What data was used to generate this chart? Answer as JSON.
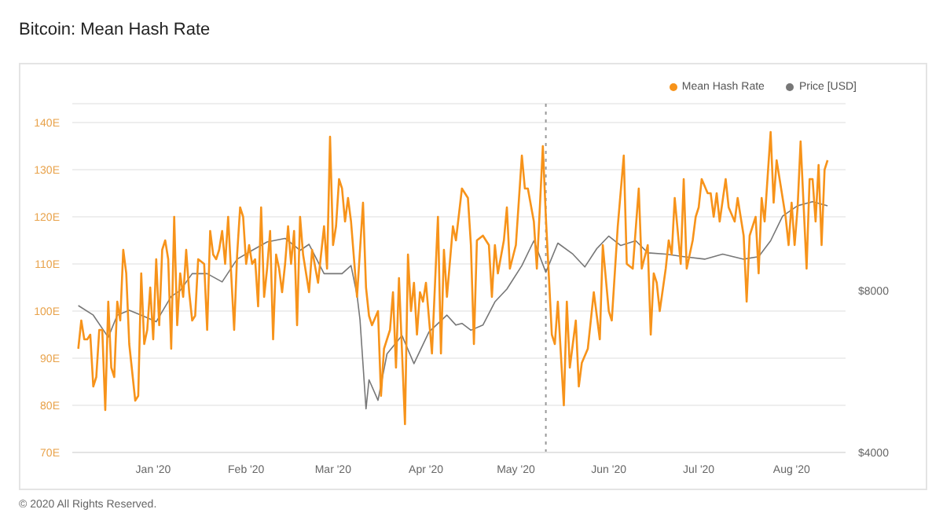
{
  "chart_data": {
    "type": "line",
    "title": "Bitcoin: Mean Hash Rate",
    "xlim": [
      "2019-12-05",
      "2020-08-19"
    ],
    "xticks": [
      {
        "value": "2020-01-01",
        "label": "Jan '20"
      },
      {
        "value": "2020-02-01",
        "label": "Feb '20"
      },
      {
        "value": "2020-03-01",
        "label": "Mar '20"
      },
      {
        "value": "2020-04-01",
        "label": "Apr '20"
      },
      {
        "value": "2020-05-01",
        "label": "May '20"
      },
      {
        "value": "2020-06-01",
        "label": "Jun '20"
      },
      {
        "value": "2020-07-01",
        "label": "Jul '20"
      },
      {
        "value": "2020-08-01",
        "label": "Aug '20"
      }
    ],
    "ylim": [
      70,
      144
    ],
    "yticks": [
      {
        "value": 70,
        "label": "70E"
      },
      {
        "value": 80,
        "label": "80E"
      },
      {
        "value": 90,
        "label": "90E"
      },
      {
        "value": 100,
        "label": "100E"
      },
      {
        "value": 110,
        "label": "110E"
      },
      {
        "value": 120,
        "label": "120E"
      },
      {
        "value": 130,
        "label": "130E"
      },
      {
        "value": 140,
        "label": "140E"
      }
    ],
    "y2lim": [
      4000,
      17800
    ],
    "y2ticks": [
      {
        "value": 4000,
        "label": "$4000"
      },
      {
        "value": 8000,
        "label": "$8000"
      }
    ],
    "log": "y2",
    "grid": "y",
    "legend": "top right",
    "marker": "none",
    "line_style": "solid",
    "ref_lines": [
      {
        "axis": "x",
        "value": "2020-05-11",
        "color": "#999999",
        "line_style": "dotted"
      }
    ],
    "annotations": [
      "© 2020 All Rights Reserved."
    ],
    "series": [
      {
        "name": "Mean Hash Rate",
        "color": "#f7931a",
        "x": [
          "2019-12-07",
          "2019-12-08",
          "2019-12-09",
          "2019-12-10",
          "2019-12-11",
          "2019-12-12",
          "2019-12-13",
          "2019-12-14",
          "2019-12-15",
          "2019-12-16",
          "2019-12-17",
          "2019-12-18",
          "2019-12-19",
          "2019-12-20",
          "2019-12-21",
          "2019-12-22",
          "2019-12-23",
          "2019-12-24",
          "2019-12-26",
          "2019-12-27",
          "2019-12-28",
          "2019-12-29",
          "2019-12-30",
          "2019-12-31",
          "2020-01-01",
          "2020-01-02",
          "2020-01-03",
          "2020-01-04",
          "2020-01-05",
          "2020-01-06",
          "2020-01-07",
          "2020-01-08",
          "2020-01-09",
          "2020-01-10",
          "2020-01-11",
          "2020-01-12",
          "2020-01-13",
          "2020-01-14",
          "2020-01-15",
          "2020-01-16",
          "2020-01-18",
          "2020-01-19",
          "2020-01-20",
          "2020-01-21",
          "2020-01-22",
          "2020-01-23",
          "2020-01-24",
          "2020-01-25",
          "2020-01-26",
          "2020-01-28",
          "2020-01-29",
          "2020-01-30",
          "2020-01-31",
          "2020-02-01",
          "2020-02-02",
          "2020-02-03",
          "2020-02-04",
          "2020-02-05",
          "2020-02-06",
          "2020-02-07",
          "2020-02-08",
          "2020-02-09",
          "2020-02-10",
          "2020-02-11",
          "2020-02-12",
          "2020-02-13",
          "2020-02-14",
          "2020-02-15",
          "2020-02-16",
          "2020-02-17",
          "2020-02-18",
          "2020-02-19",
          "2020-02-20",
          "2020-02-21",
          "2020-02-22",
          "2020-02-23",
          "2020-02-25",
          "2020-02-27",
          "2020-02-28",
          "2020-02-29",
          "2020-03-01",
          "2020-03-02",
          "2020-03-03",
          "2020-03-04",
          "2020-03-05",
          "2020-03-06",
          "2020-03-07",
          "2020-03-09",
          "2020-03-11",
          "2020-03-12",
          "2020-03-13",
          "2020-03-14",
          "2020-03-16",
          "2020-03-17",
          "2020-03-18",
          "2020-03-20",
          "2020-03-21",
          "2020-03-22",
          "2020-03-23",
          "2020-03-25",
          "2020-03-26",
          "2020-03-27",
          "2020-03-28",
          "2020-03-29",
          "2020-03-30",
          "2020-03-31",
          "2020-04-01",
          "2020-04-03",
          "2020-04-05",
          "2020-04-06",
          "2020-04-07",
          "2020-04-08",
          "2020-04-10",
          "2020-04-11",
          "2020-04-13",
          "2020-04-15",
          "2020-04-16",
          "2020-04-17",
          "2020-04-18",
          "2020-04-20",
          "2020-04-22",
          "2020-04-23",
          "2020-04-24",
          "2020-04-25",
          "2020-04-27",
          "2020-04-28",
          "2020-04-29",
          "2020-05-01",
          "2020-05-03",
          "2020-05-04",
          "2020-05-05",
          "2020-05-07",
          "2020-05-08",
          "2020-05-10",
          "2020-05-11",
          "2020-05-13",
          "2020-05-14",
          "2020-05-15",
          "2020-05-17",
          "2020-05-18",
          "2020-05-19",
          "2020-05-21",
          "2020-05-22",
          "2020-05-23",
          "2020-05-25",
          "2020-05-27",
          "2020-05-29",
          "2020-05-30",
          "2020-06-01",
          "2020-06-02",
          "2020-06-04",
          "2020-06-06",
          "2020-06-07",
          "2020-06-09",
          "2020-06-11",
          "2020-06-12",
          "2020-06-14",
          "2020-06-15",
          "2020-06-16",
          "2020-06-17",
          "2020-06-18",
          "2020-06-20",
          "2020-06-21",
          "2020-06-22",
          "2020-06-23",
          "2020-06-25",
          "2020-06-26",
          "2020-06-27",
          "2020-06-29",
          "2020-06-30",
          "2020-07-01",
          "2020-07-02",
          "2020-07-04",
          "2020-07-05",
          "2020-07-06",
          "2020-07-07",
          "2020-07-08",
          "2020-07-10",
          "2020-07-11",
          "2020-07-13",
          "2020-07-14",
          "2020-07-16",
          "2020-07-17",
          "2020-07-18",
          "2020-07-20",
          "2020-07-21",
          "2020-07-22",
          "2020-07-23",
          "2020-07-25",
          "2020-07-26",
          "2020-07-27",
          "2020-07-29",
          "2020-07-30",
          "2020-07-31",
          "2020-08-01",
          "2020-08-02",
          "2020-08-03",
          "2020-08-04",
          "2020-08-06",
          "2020-08-07",
          "2020-08-08",
          "2020-08-09",
          "2020-08-10",
          "2020-08-11",
          "2020-08-12",
          "2020-08-13"
        ],
        "values": [
          92,
          98,
          94,
          94,
          95,
          84,
          86,
          96,
          96,
          79,
          102,
          88,
          86,
          102,
          98,
          113,
          108,
          93,
          81,
          82,
          108,
          93,
          96,
          105,
          94,
          111,
          97,
          113,
          115,
          111,
          92,
          120,
          97,
          108,
          103,
          113,
          104,
          98,
          99,
          111,
          110,
          96,
          117,
          112,
          111,
          113,
          117,
          110,
          120,
          96,
          112,
          122,
          120,
          110,
          114,
          110,
          111,
          101,
          122,
          103,
          109,
          117,
          94,
          112,
          109,
          104,
          110,
          118,
          110,
          117,
          97,
          120,
          112,
          108,
          104,
          113,
          106,
          118,
          109,
          137,
          114,
          118,
          128,
          126,
          119,
          124,
          119,
          103,
          123,
          105,
          99,
          97,
          100,
          82,
          92,
          96,
          104,
          88,
          107,
          76,
          112,
          100,
          106,
          95,
          104,
          102,
          106,
          91,
          120,
          91,
          113,
          103,
          118,
          115,
          126,
          124,
          114,
          93,
          115,
          116,
          114,
          103,
          114,
          108,
          115,
          122,
          109,
          114,
          133,
          126,
          126,
          119,
          109,
          135,
          120,
          95,
          93,
          102,
          80,
          102,
          88,
          98,
          84,
          89,
          92,
          104,
          94,
          114,
          100,
          98,
          118,
          133,
          110,
          109,
          126,
          109,
          114,
          95,
          108,
          106,
          100,
          109,
          115,
          112,
          124,
          110,
          128,
          109,
          115,
          120,
          122,
          128,
          125,
          125,
          120,
          125,
          119,
          128,
          122,
          119,
          124,
          116,
          102,
          116,
          120,
          108,
          124,
          119,
          138,
          123,
          132,
          124,
          120,
          114,
          123,
          114,
          122,
          136,
          109,
          128,
          128,
          119,
          131,
          114,
          130,
          132
        ]
      },
      {
        "name": "Price [USD]",
        "color": "#777777",
        "axis": "y2",
        "x": [
          "2019-12-07",
          "2019-12-12",
          "2019-12-17",
          "2019-12-20",
          "2019-12-24",
          "2019-12-28",
          "2020-01-02",
          "2020-01-07",
          "2020-01-10",
          "2020-01-14",
          "2020-01-19",
          "2020-01-24",
          "2020-01-29",
          "2020-02-03",
          "2020-02-08",
          "2020-02-14",
          "2020-02-19",
          "2020-02-22",
          "2020-02-27",
          "2020-03-04",
          "2020-03-07",
          "2020-03-09",
          "2020-03-10",
          "2020-03-12",
          "2020-03-13",
          "2020-03-16",
          "2020-03-19",
          "2020-03-24",
          "2020-03-28",
          "2020-04-02",
          "2020-04-08",
          "2020-04-11",
          "2020-04-13",
          "2020-04-16",
          "2020-04-20",
          "2020-04-24",
          "2020-04-28",
          "2020-05-03",
          "2020-05-07",
          "2020-05-11",
          "2020-05-15",
          "2020-05-20",
          "2020-05-24",
          "2020-05-28",
          "2020-06-01",
          "2020-06-05",
          "2020-06-10",
          "2020-06-14",
          "2020-06-20",
          "2020-06-26",
          "2020-07-03",
          "2020-07-09",
          "2020-07-16",
          "2020-07-21",
          "2020-07-25",
          "2020-07-29",
          "2020-08-03",
          "2020-08-08",
          "2020-08-13"
        ],
        "values": [
          7500,
          7200,
          6550,
          7200,
          7350,
          7200,
          7000,
          7800,
          8000,
          8600,
          8600,
          8300,
          9150,
          9500,
          9850,
          10000,
          9500,
          9750,
          8600,
          8600,
          8900,
          7850,
          7050,
          4820,
          5460,
          5000,
          6100,
          6600,
          5850,
          6700,
          7200,
          6900,
          6950,
          6750,
          6900,
          7620,
          8050,
          8900,
          9900,
          8650,
          9800,
          9350,
          8850,
          9570,
          10100,
          9700,
          9900,
          9400,
          9350,
          9250,
          9150,
          9350,
          9150,
          9250,
          9900,
          11000,
          11500,
          11700,
          11500
        ]
      }
    ]
  }
}
